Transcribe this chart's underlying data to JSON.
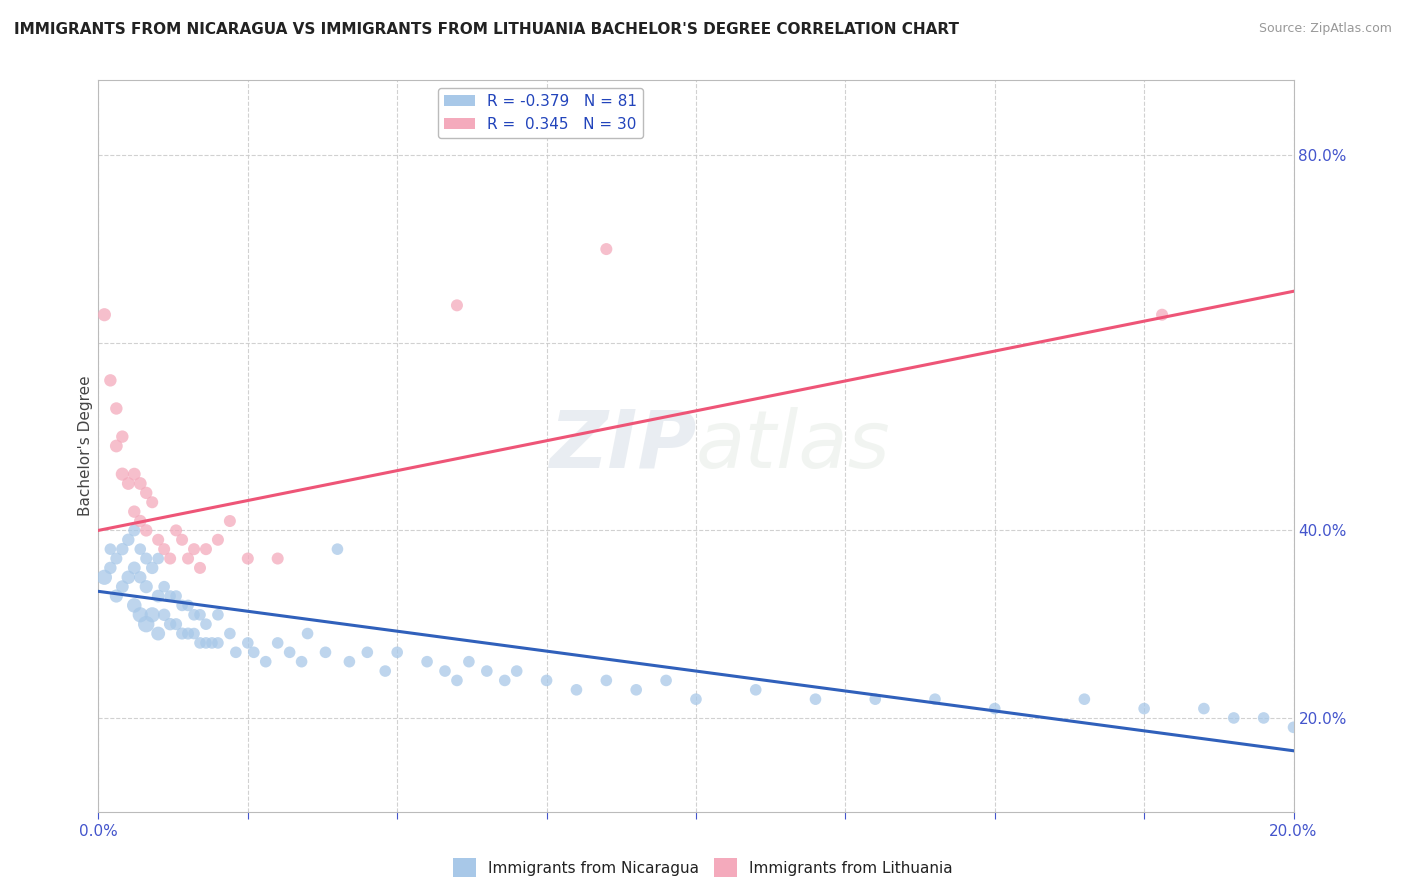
{
  "title": "IMMIGRANTS FROM NICARAGUA VS IMMIGRANTS FROM LITHUANIA BACHELOR'S DEGREE CORRELATION CHART",
  "source": "Source: ZipAtlas.com",
  "ylabel": "Bachelor's Degree",
  "legend_blue_R": -0.379,
  "legend_blue_N": 81,
  "legend_pink_R": 0.345,
  "legend_pink_N": 30,
  "blue_color": "#A8C8E8",
  "pink_color": "#F4AABC",
  "blue_line_color": "#3060BB",
  "pink_line_color": "#EE5577",
  "background_color": "#FFFFFF",
  "grid_color": "#CCCCCC",
  "watermark_zip": "ZIP",
  "watermark_atlas": "atlas",
  "xmin": 0.0,
  "xmax": 0.2,
  "ymin": 0.1,
  "ymax": 0.88,
  "blue_trend_x0": 0.0,
  "blue_trend_x1": 0.2,
  "blue_trend_y0": 0.335,
  "blue_trend_y1": 0.165,
  "pink_trend_x0": 0.0,
  "pink_trend_x1": 0.2,
  "pink_trend_y0": 0.4,
  "pink_trend_y1": 0.655,
  "blue_x": [
    0.001,
    0.002,
    0.002,
    0.003,
    0.003,
    0.004,
    0.004,
    0.005,
    0.005,
    0.006,
    0.006,
    0.006,
    0.007,
    0.007,
    0.007,
    0.008,
    0.008,
    0.008,
    0.009,
    0.009,
    0.01,
    0.01,
    0.01,
    0.011,
    0.011,
    0.012,
    0.012,
    0.013,
    0.013,
    0.014,
    0.014,
    0.015,
    0.015,
    0.016,
    0.016,
    0.017,
    0.017,
    0.018,
    0.018,
    0.019,
    0.02,
    0.02,
    0.022,
    0.023,
    0.025,
    0.026,
    0.028,
    0.03,
    0.032,
    0.034,
    0.035,
    0.038,
    0.04,
    0.042,
    0.045,
    0.048,
    0.05,
    0.055,
    0.058,
    0.06,
    0.062,
    0.065,
    0.068,
    0.07,
    0.075,
    0.08,
    0.085,
    0.09,
    0.095,
    0.1,
    0.11,
    0.12,
    0.13,
    0.14,
    0.15,
    0.165,
    0.175,
    0.185,
    0.19,
    0.195,
    0.2
  ],
  "blue_y": [
    0.35,
    0.36,
    0.38,
    0.33,
    0.37,
    0.34,
    0.38,
    0.35,
    0.39,
    0.32,
    0.36,
    0.4,
    0.31,
    0.35,
    0.38,
    0.3,
    0.34,
    0.37,
    0.31,
    0.36,
    0.29,
    0.33,
    0.37,
    0.31,
    0.34,
    0.3,
    0.33,
    0.3,
    0.33,
    0.29,
    0.32,
    0.29,
    0.32,
    0.29,
    0.31,
    0.28,
    0.31,
    0.28,
    0.3,
    0.28,
    0.28,
    0.31,
    0.29,
    0.27,
    0.28,
    0.27,
    0.26,
    0.28,
    0.27,
    0.26,
    0.29,
    0.27,
    0.38,
    0.26,
    0.27,
    0.25,
    0.27,
    0.26,
    0.25,
    0.24,
    0.26,
    0.25,
    0.24,
    0.25,
    0.24,
    0.23,
    0.24,
    0.23,
    0.24,
    0.22,
    0.23,
    0.22,
    0.22,
    0.22,
    0.21,
    0.22,
    0.21,
    0.21,
    0.2,
    0.2,
    0.19
  ],
  "blue_sizes": [
    120,
    80,
    70,
    90,
    75,
    85,
    80,
    95,
    80,
    110,
    85,
    75,
    120,
    80,
    70,
    140,
    90,
    75,
    120,
    80,
    100,
    85,
    70,
    80,
    70,
    80,
    70,
    75,
    70,
    75,
    70,
    75,
    70,
    70,
    70,
    70,
    70,
    70,
    70,
    70,
    70,
    70,
    70,
    70,
    70,
    70,
    70,
    70,
    70,
    70,
    70,
    70,
    70,
    70,
    70,
    70,
    70,
    70,
    70,
    70,
    70,
    70,
    70,
    70,
    70,
    70,
    70,
    70,
    70,
    70,
    70,
    70,
    70,
    70,
    70,
    70,
    70,
    70,
    70,
    70,
    70
  ],
  "pink_x": [
    0.001,
    0.002,
    0.003,
    0.003,
    0.004,
    0.004,
    0.005,
    0.006,
    0.006,
    0.007,
    0.007,
    0.008,
    0.008,
    0.009,
    0.01,
    0.011,
    0.012,
    0.013,
    0.014,
    0.015,
    0.016,
    0.017,
    0.018,
    0.02,
    0.022,
    0.025,
    0.03,
    0.06,
    0.085,
    0.178
  ],
  "pink_y": [
    0.63,
    0.56,
    0.49,
    0.53,
    0.46,
    0.5,
    0.45,
    0.42,
    0.46,
    0.41,
    0.45,
    0.4,
    0.44,
    0.43,
    0.39,
    0.38,
    0.37,
    0.4,
    0.39,
    0.37,
    0.38,
    0.36,
    0.38,
    0.39,
    0.41,
    0.37,
    0.37,
    0.64,
    0.7,
    0.63
  ],
  "pink_sizes": [
    90,
    80,
    85,
    80,
    90,
    80,
    85,
    80,
    85,
    80,
    85,
    80,
    80,
    75,
    75,
    75,
    75,
    75,
    75,
    75,
    75,
    75,
    75,
    75,
    75,
    75,
    75,
    75,
    75,
    75
  ]
}
